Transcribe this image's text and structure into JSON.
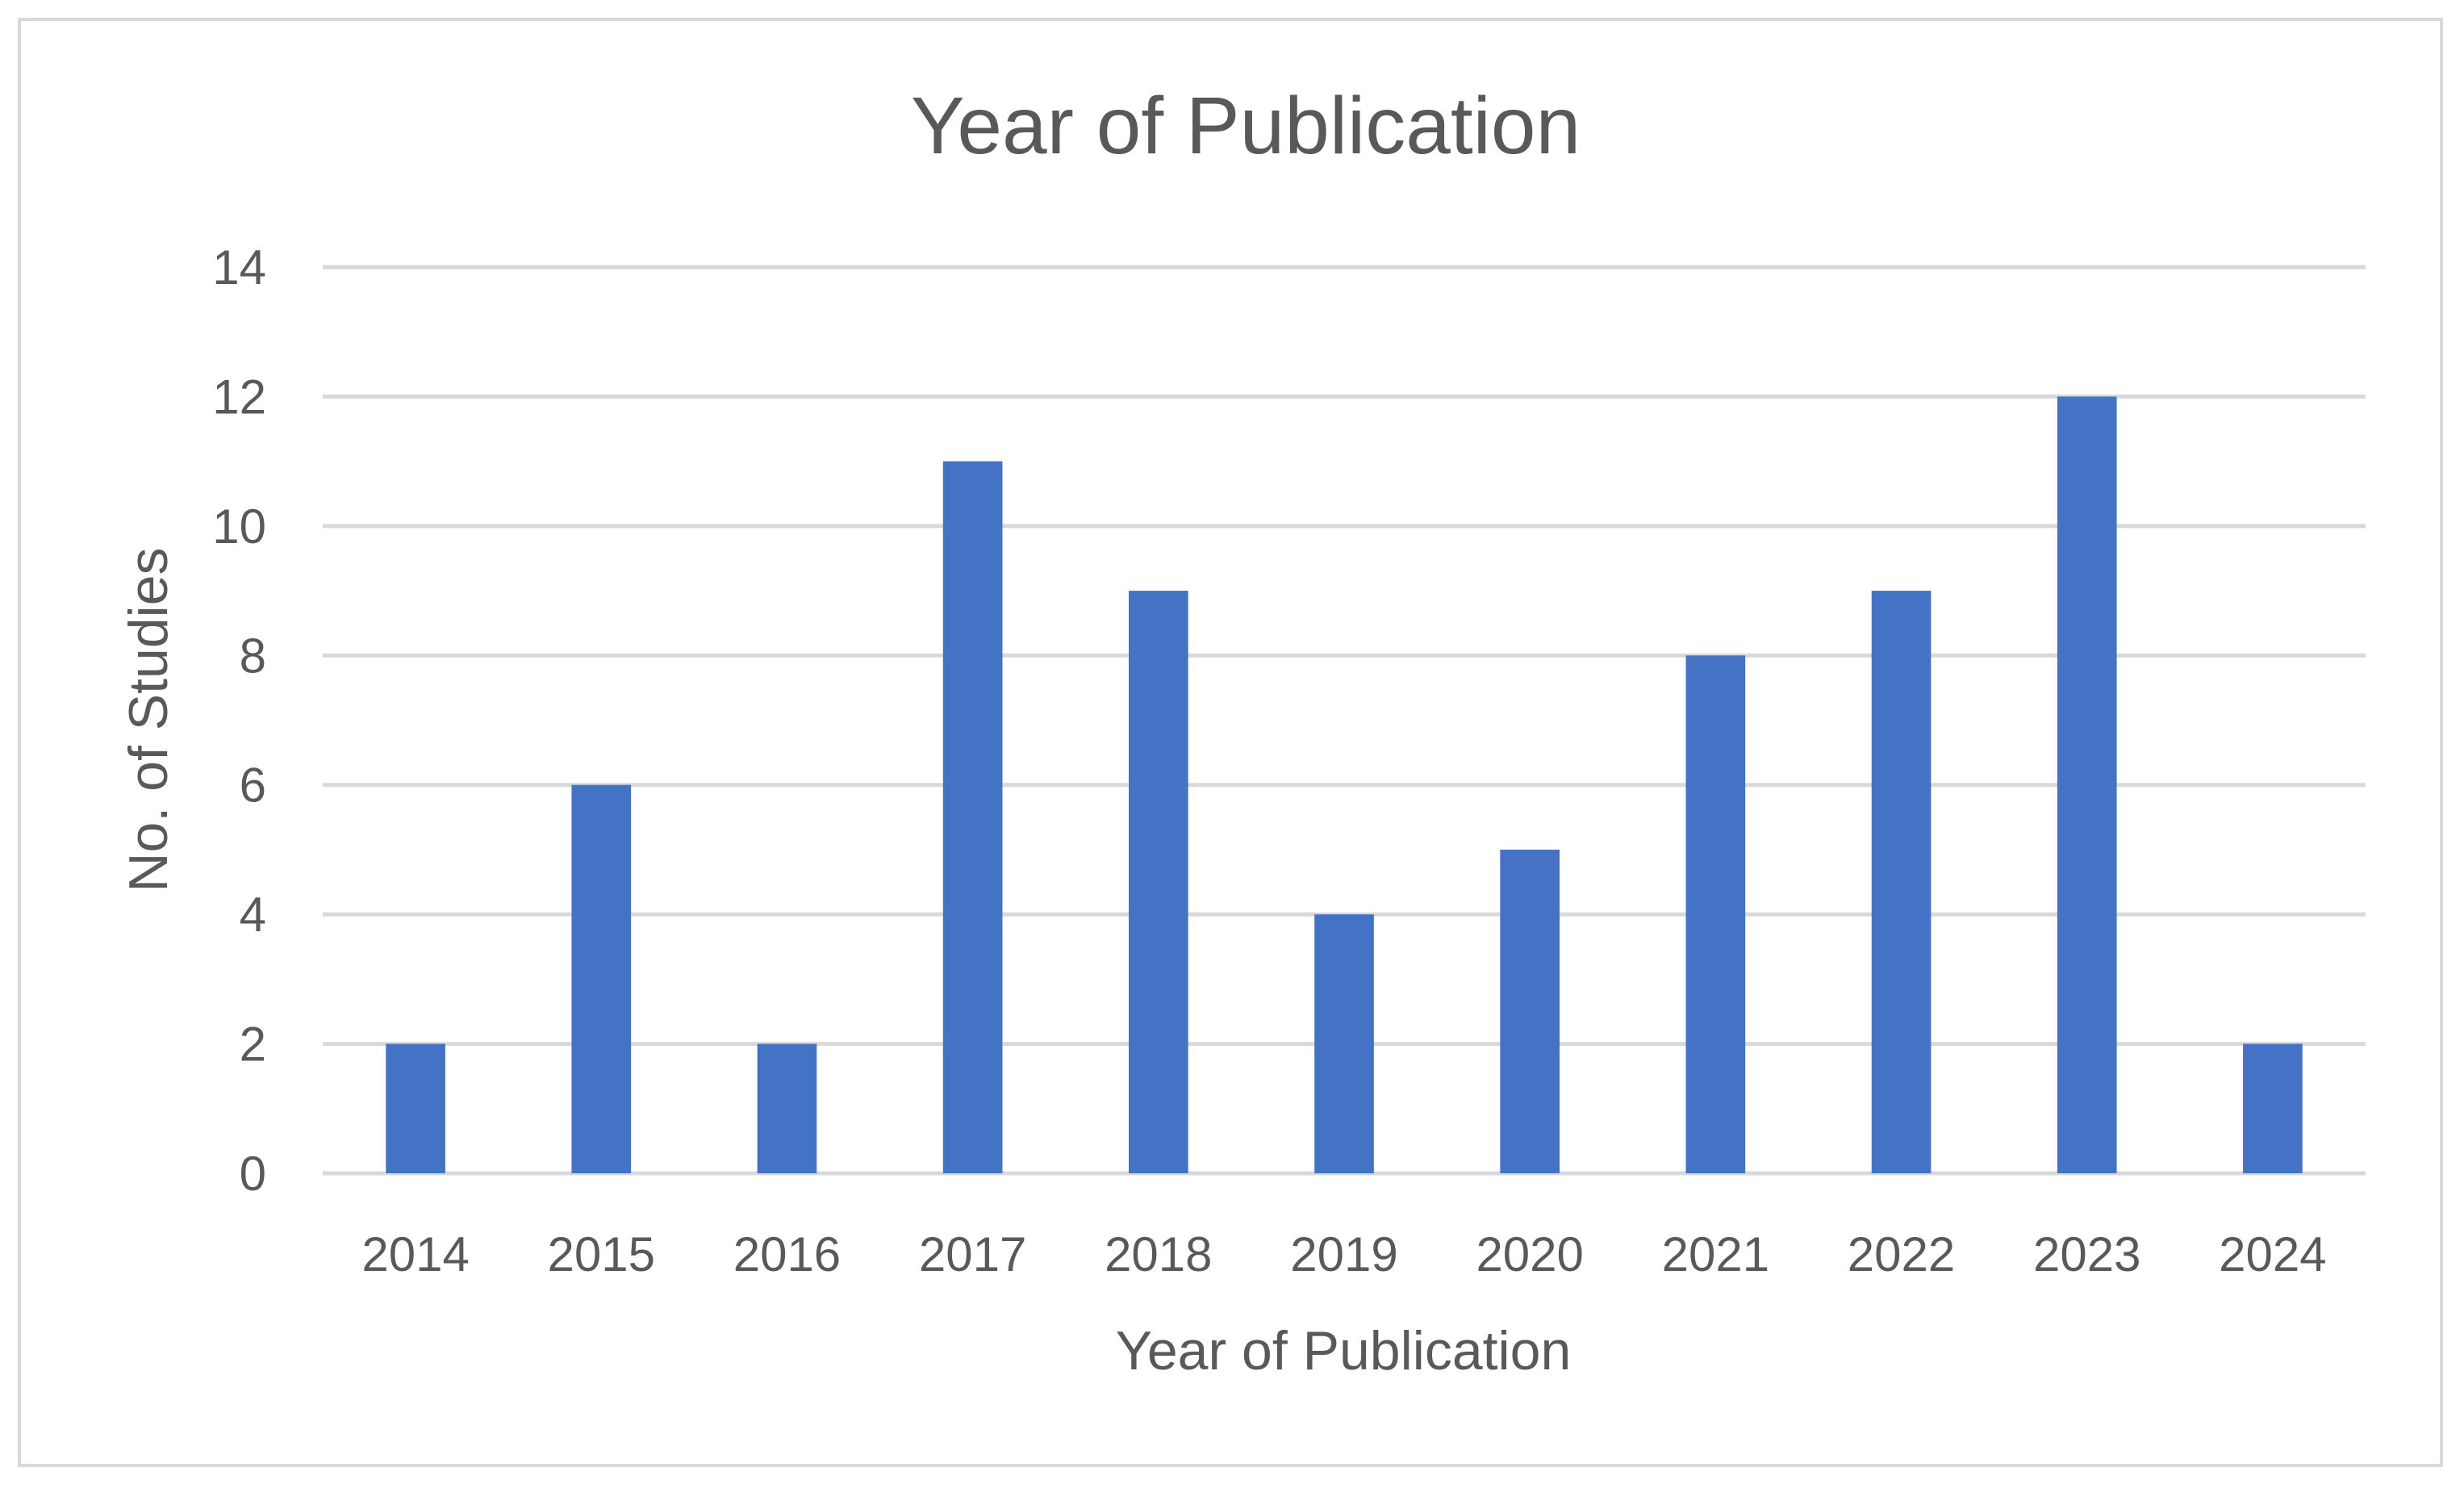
{
  "chart_data": {
    "type": "bar",
    "title": "Year of Publication",
    "xlabel": "Year of Publication",
    "ylabel": "No. of Studies",
    "categories": [
      "2014",
      "2015",
      "2016",
      "2017",
      "2018",
      "2019",
      "2020",
      "2021",
      "2022",
      "2023",
      "2024"
    ],
    "values": [
      2,
      6,
      2,
      11,
      9,
      4,
      5,
      8,
      9,
      12,
      2
    ],
    "ylim": [
      0,
      14
    ],
    "yticks": [
      0,
      2,
      4,
      6,
      8,
      10,
      12,
      14
    ],
    "grid": true,
    "legend": "none",
    "bar_color": "#4472C4"
  }
}
